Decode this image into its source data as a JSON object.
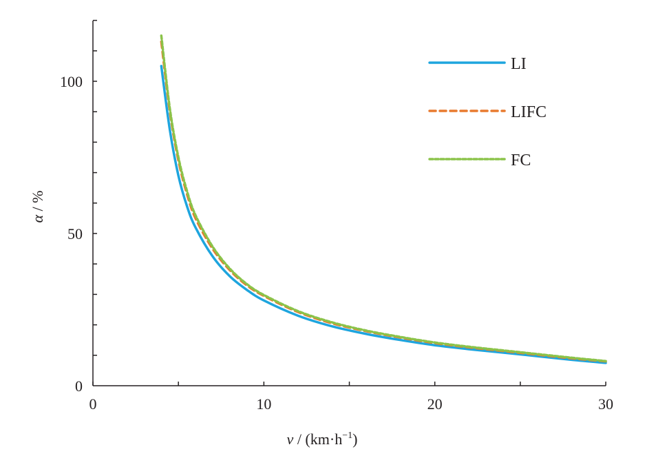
{
  "chart_data": {
    "type": "line",
    "title": "",
    "xlabel_var": "v",
    "xlabel_unit": " / (km·h",
    "xlabel_sup": "−1",
    "xlabel_close": ")",
    "ylabel_var": "α",
    "ylabel_unit": " / %",
    "xlim": [
      0,
      30
    ],
    "ylim": [
      0,
      120
    ],
    "xticks": [
      "0",
      "10",
      "20",
      "30"
    ],
    "xtick_values": [
      0,
      10,
      20,
      30
    ],
    "yticks": [
      "0",
      "50",
      "100"
    ],
    "ytick_values": [
      0,
      50,
      100
    ],
    "grid": false,
    "legend_placement": "top-right",
    "series": [
      {
        "name": "LI",
        "color": "#1ea5de",
        "dash": "solid",
        "x": [
          4,
          4.5,
          5,
          5.5,
          6,
          7,
          8,
          9,
          10,
          12,
          14,
          16,
          18,
          20,
          22,
          25,
          28,
          30
        ],
        "y": [
          105,
          84,
          69,
          59,
          52,
          42.5,
          36,
          31.5,
          28,
          23,
          19.5,
          17,
          15,
          13.3,
          12,
          10.3,
          8.5,
          7.5
        ]
      },
      {
        "name": "LIFC",
        "color": "#e87a2f",
        "dash": "dashed",
        "x": [
          4,
          4.5,
          5,
          5.5,
          6,
          7,
          8,
          9,
          10,
          12,
          14,
          16,
          18,
          20,
          22,
          25,
          28,
          30
        ],
        "y": [
          113,
          90,
          74,
          63,
          55,
          45,
          38,
          33,
          29.5,
          24.2,
          20.5,
          17.9,
          15.8,
          14,
          12.6,
          10.8,
          9,
          8
        ]
      },
      {
        "name": "FC",
        "color": "#8bc34a",
        "dash": "dotted",
        "x": [
          4,
          4.5,
          5,
          5.5,
          6,
          7,
          8,
          9,
          10,
          12,
          14,
          16,
          18,
          20,
          22,
          25,
          28,
          30
        ],
        "y": [
          115,
          91,
          75,
          64,
          56,
          45.7,
          38.5,
          33.4,
          29.8,
          24.5,
          20.8,
          18.1,
          16,
          14.2,
          12.8,
          11,
          9.2,
          8.1
        ]
      }
    ]
  }
}
